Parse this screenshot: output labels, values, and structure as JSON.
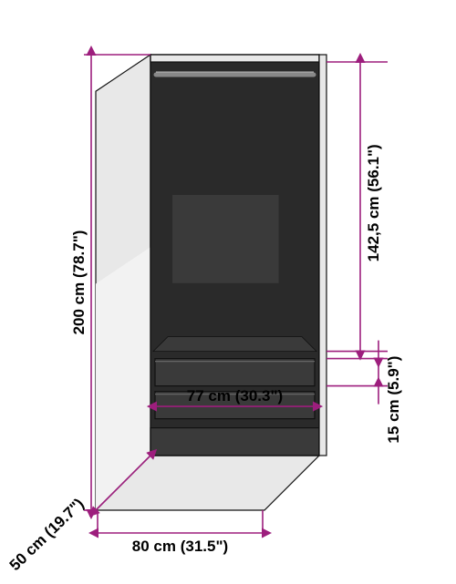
{
  "colors": {
    "line": "#9d1e7d",
    "arrow": "#9d1e7d",
    "body_dark": "#2a2a2a",
    "body_mid": "#3a3a3a",
    "body_light": "#e8e8e8",
    "body_light2": "#f2f2f2",
    "rail": "#888888",
    "edge": "#111111",
    "text": "#000000",
    "bg": "#ffffff"
  },
  "dimensions": {
    "height_total": "200 cm (78.7\")",
    "upper_height": "142,5 cm (56.1\")",
    "drawer_height": "15 cm (5.9\")",
    "drawer_width": "77 cm (30.3\")",
    "width": "80 cm (31.5\")",
    "depth": "50 cm (19.7\")"
  },
  "stroke_widths": {
    "dim_line": 1.6,
    "body_outline": 1.2
  },
  "font": {
    "label_size": 17,
    "label_weight": "600"
  }
}
